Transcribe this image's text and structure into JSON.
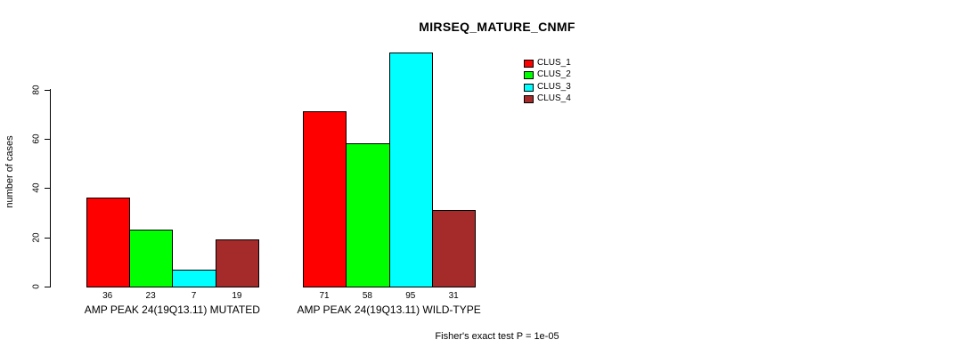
{
  "chart_data": {
    "type": "bar",
    "title": "MIRSEQ_MATURE_CNMF",
    "ylabel": "number of cases",
    "xlabel": "",
    "yticks": [
      0,
      20,
      40,
      60,
      80
    ],
    "ylim": [
      0,
      95
    ],
    "grid": false,
    "legend_position": "top-right",
    "background_color": "#ffffff",
    "bar_border_color": "#000000",
    "series": [
      {
        "name": "CLUS_1",
        "color": "#ff0000"
      },
      {
        "name": "CLUS_2",
        "color": "#00ff00"
      },
      {
        "name": "CLUS_3",
        "color": "#00ffff"
      },
      {
        "name": "CLUS_4",
        "color": "#a52a2a"
      }
    ],
    "groups": [
      {
        "label": "AMP PEAK 24(19Q13.11) MUTATED",
        "values": [
          36,
          23,
          7,
          19
        ]
      },
      {
        "label": "AMP PEAK 24(19Q13.11) WILD-TYPE",
        "values": [
          71,
          58,
          95,
          31
        ]
      }
    ],
    "footer": "Fisher's exact test P = 1e-05"
  }
}
